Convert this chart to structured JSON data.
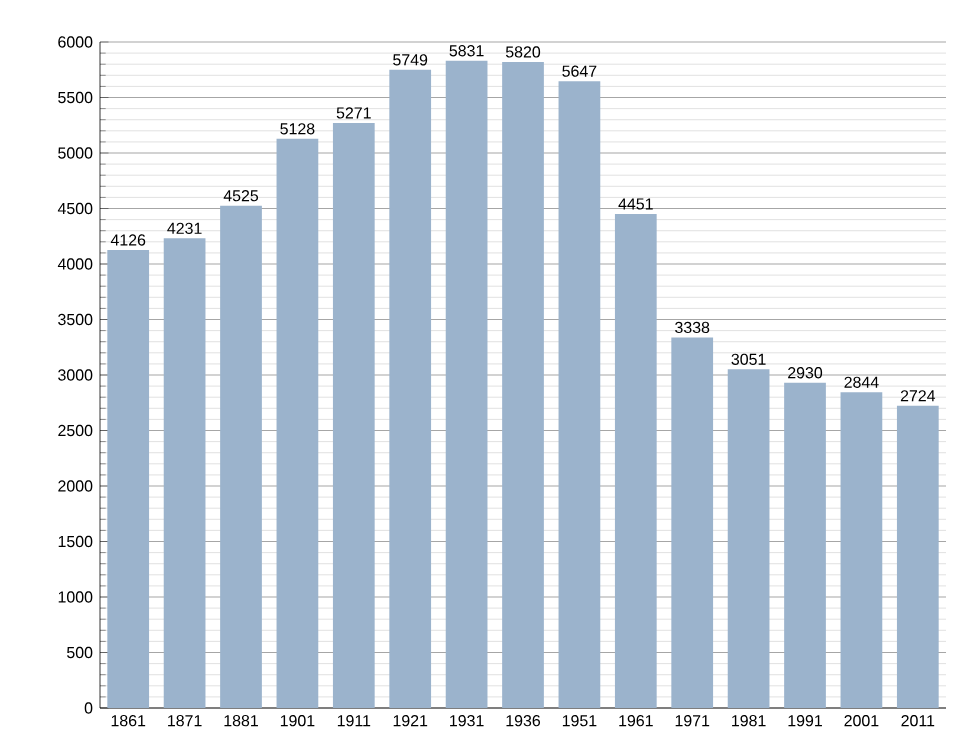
{
  "chart_data": {
    "type": "bar",
    "categories": [
      "1861",
      "1871",
      "1881",
      "1901",
      "1911",
      "1921",
      "1931",
      "1936",
      "1951",
      "1961",
      "1971",
      "1981",
      "1991",
      "2001",
      "2011"
    ],
    "values": [
      4126,
      4231,
      4525,
      5128,
      5271,
      5749,
      5831,
      5820,
      5647,
      4451,
      3338,
      3051,
      2930,
      2844,
      2724
    ],
    "color": "#9bb3cc",
    "ylim": [
      0,
      6000
    ],
    "yticks": [
      0,
      500,
      1000,
      1500,
      2000,
      2500,
      3000,
      3500,
      4000,
      4500,
      5000,
      5500,
      6000
    ],
    "grid": "y",
    "data_labels": true
  }
}
